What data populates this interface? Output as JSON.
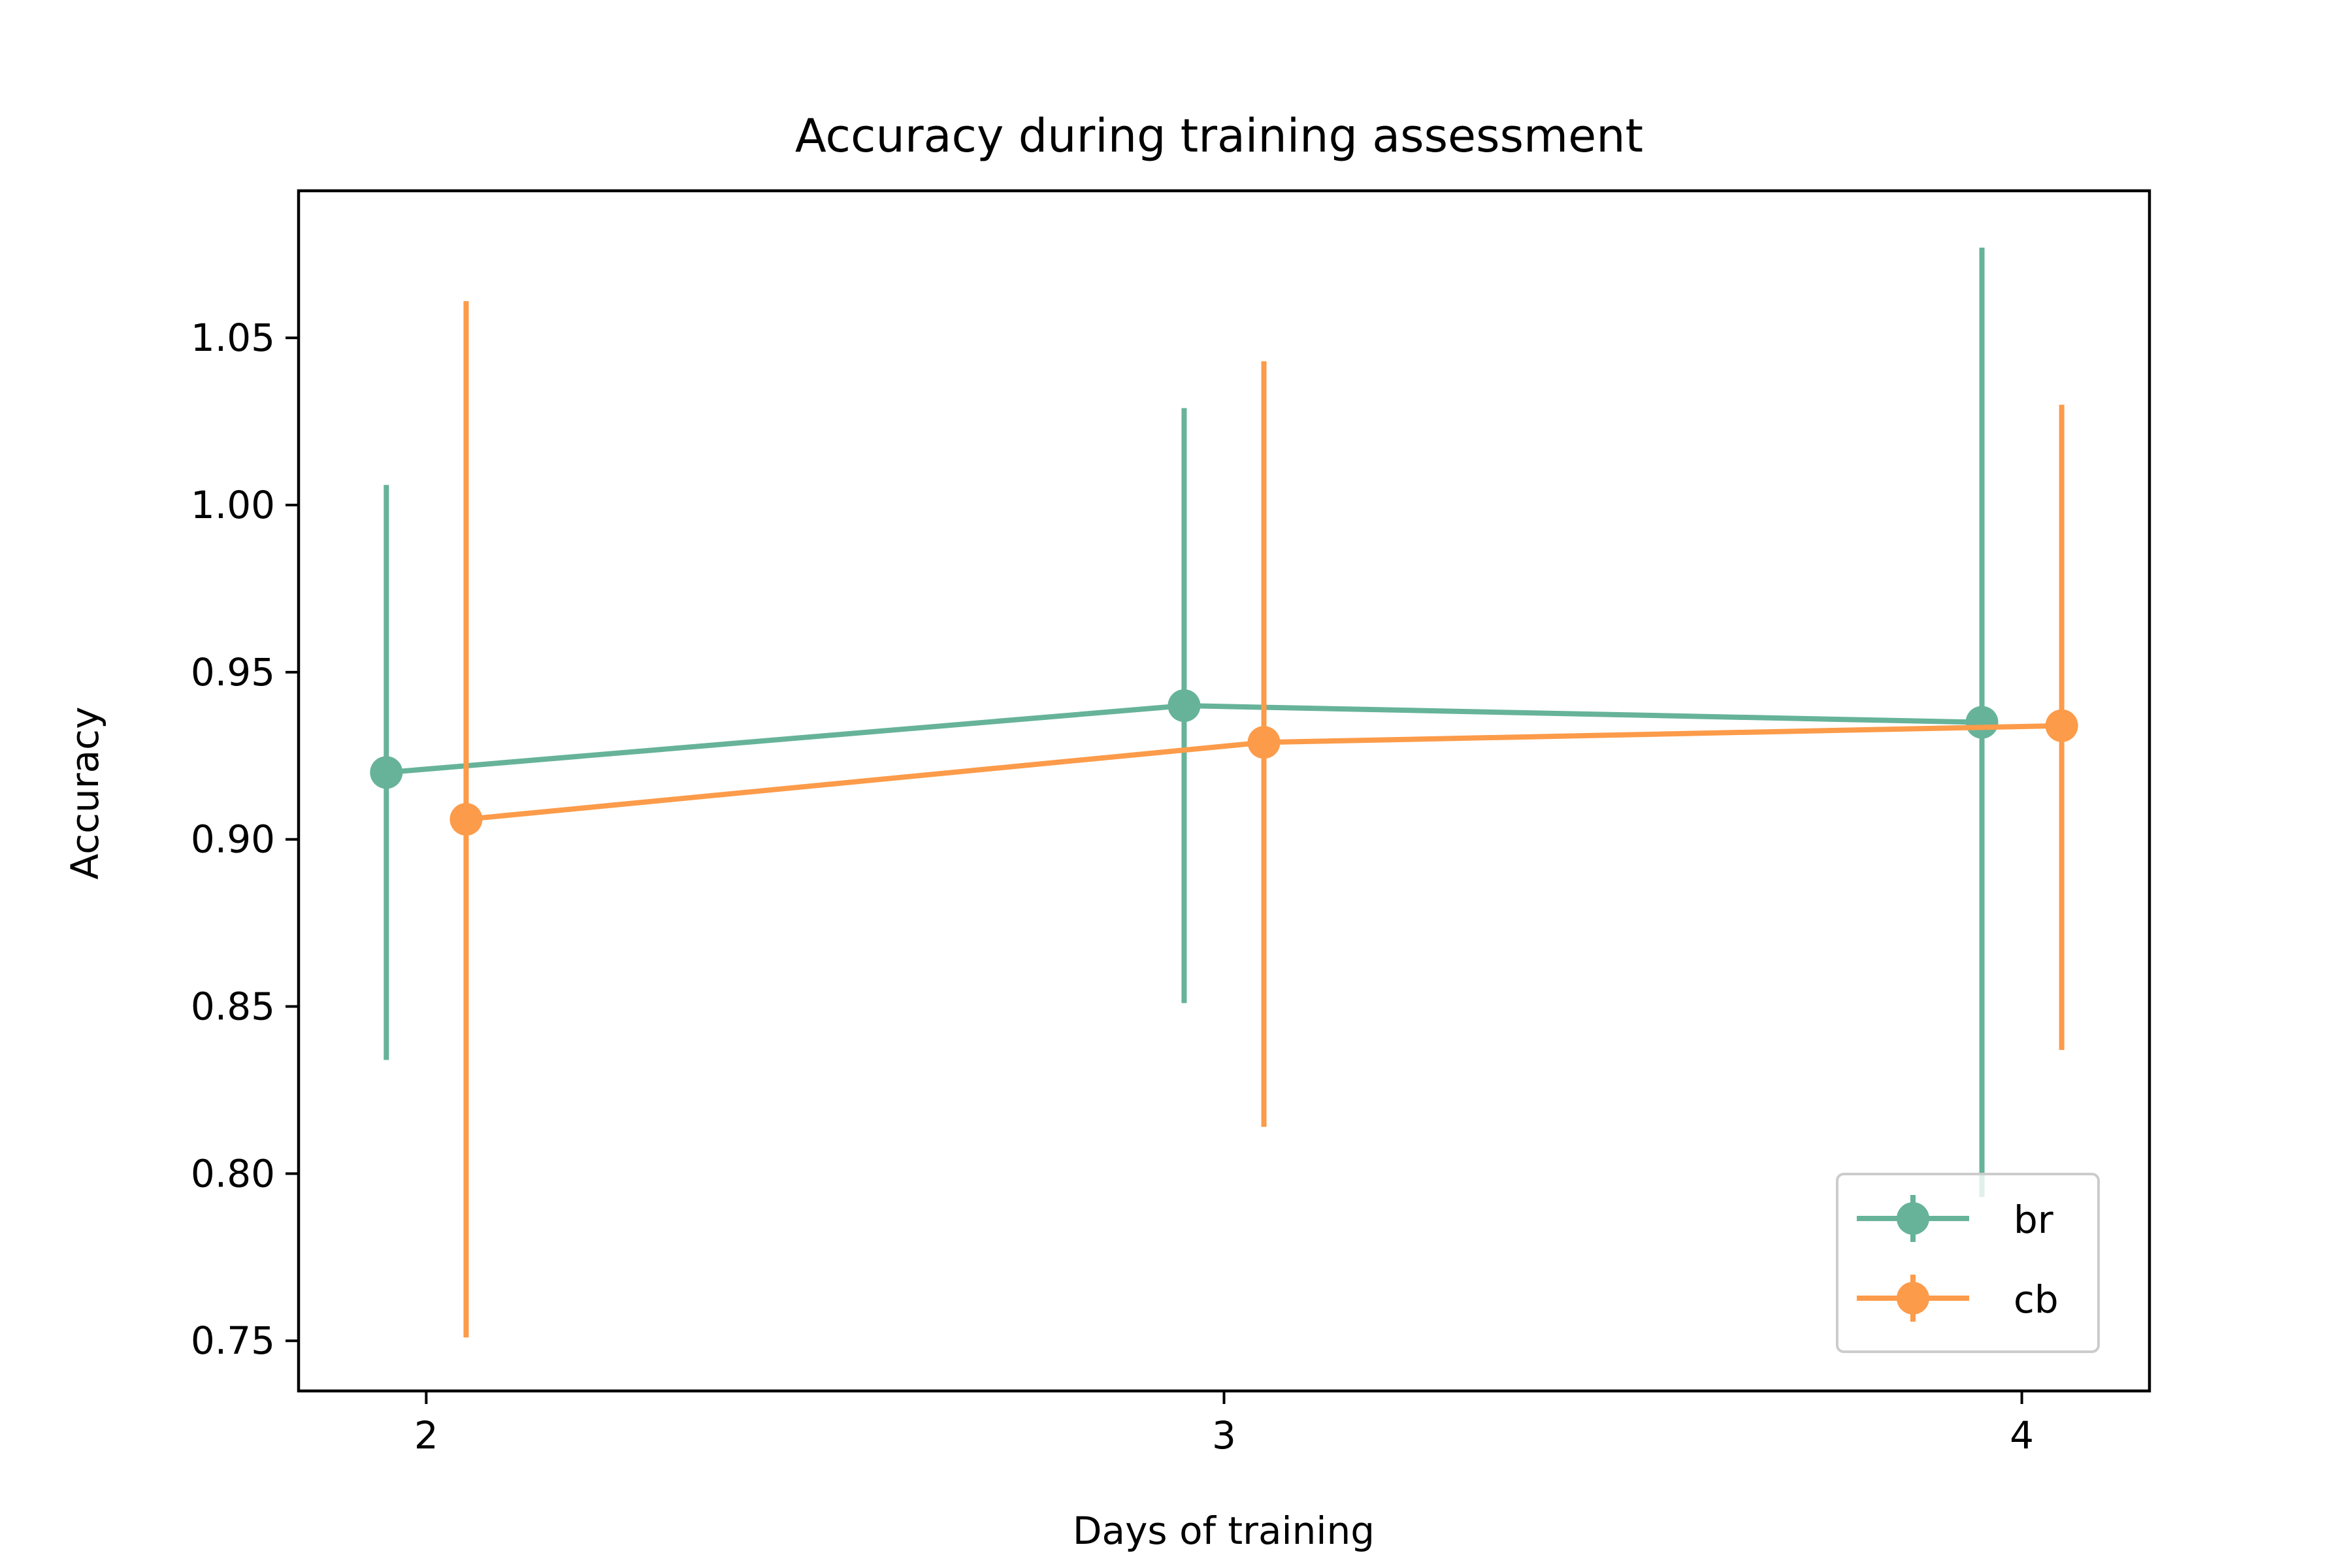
{
  "chart_data": {
    "type": "line",
    "title": "Accuracy during training assessment",
    "xlabel": "Days of training",
    "ylabel": "Accuracy",
    "x": [
      2,
      3,
      4
    ],
    "x_ticks": [
      "2",
      "3",
      "4"
    ],
    "y_ticks": [
      "0.75",
      "0.80",
      "0.85",
      "0.90",
      "0.95",
      "1.00",
      "1.05"
    ],
    "xlim": [
      1.84,
      4.16
    ],
    "ylim": [
      0.735,
      1.094
    ],
    "series": [
      {
        "name": "br",
        "color": "#66b39a",
        "x": [
          1.95,
          2.95,
          3.95
        ],
        "values": [
          0.92,
          0.94,
          0.935
        ],
        "err_low": [
          0.834,
          0.851,
          0.793
        ],
        "err_high": [
          1.006,
          1.029,
          1.077
        ]
      },
      {
        "name": "cb",
        "color": "#fc9b4a",
        "x": [
          2.05,
          3.05,
          4.05
        ],
        "values": [
          0.906,
          0.929,
          0.934
        ],
        "err_low": [
          0.751,
          0.814,
          0.837
        ],
        "err_high": [
          1.061,
          1.043,
          1.03
        ]
      }
    ],
    "legend": {
      "position": "lower right",
      "entries": [
        "br",
        "cb"
      ]
    },
    "grid": false
  }
}
